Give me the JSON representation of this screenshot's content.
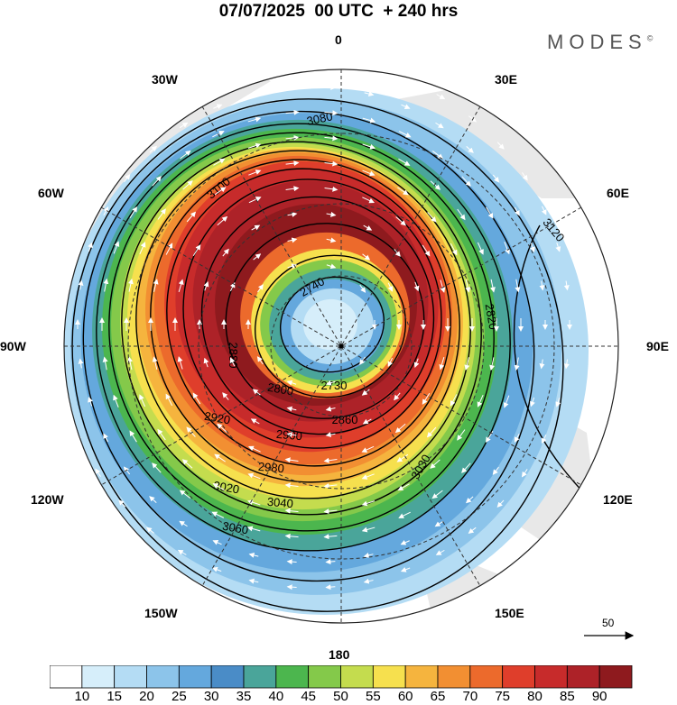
{
  "header": {
    "title": "07/07/2025  00 UTC  + 240 hrs",
    "brand": "MODES",
    "brand_mark": "©"
  },
  "longitude_labels": {
    "top": "0",
    "top_right": "30E",
    "right_upper": "60E",
    "right": "90E",
    "right_lower": "120E",
    "bottom_right": "150E",
    "bottom": "180",
    "bottom_left": "150W",
    "left_lower": "120W",
    "left": "90W",
    "left_upper": "60W",
    "top_left": "30W"
  },
  "reference_vector": {
    "value": "50"
  },
  "contour_labels": [
    "3080",
    "3100",
    "3120",
    "3060",
    "3040",
    "3020",
    "2980",
    "2920",
    "2900",
    "2860",
    "2820",
    "2800",
    "2740",
    "2730",
    "2880",
    "3030"
  ],
  "colorbar": {
    "labels": [
      "10",
      "15",
      "20",
      "25",
      "30",
      "35",
      "40",
      "45",
      "50",
      "55",
      "60",
      "65",
      "70",
      "75",
      "80",
      "85",
      "90"
    ],
    "colors": [
      "#ffffff",
      "#d6eefa",
      "#b4dcf4",
      "#8cc4ea",
      "#64a8dd",
      "#4a8cc7",
      "#4aa59a",
      "#4cb64e",
      "#84c94a",
      "#c4dc4e",
      "#f6e04e",
      "#f5b43e",
      "#f28f32",
      "#ec6a2c",
      "#df3e2b",
      "#c72b2b",
      "#ad2228",
      "#8e1a1e"
    ]
  },
  "map": {
    "land_color": "#e8e8e8",
    "grid_color": "#333333"
  }
}
